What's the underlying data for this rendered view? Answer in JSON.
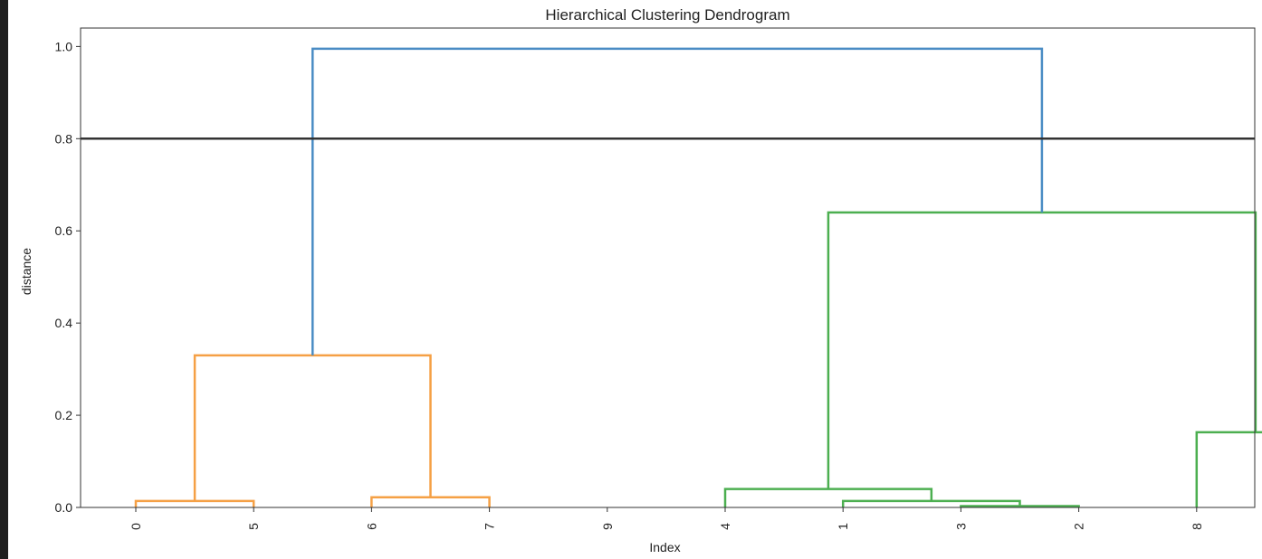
{
  "chart_data": {
    "type": "dendrogram",
    "title": "Hierarchical Clustering Dendrogram",
    "xlabel": "Index",
    "ylabel": "distance",
    "ylim": [
      0,
      1.04
    ],
    "yticks": [
      0.0,
      0.2,
      0.4,
      0.6,
      0.8,
      1.0
    ],
    "ytick_labels": [
      "0.0",
      "0.2",
      "0.4",
      "0.6",
      "0.8",
      "1.0"
    ],
    "leaf_labels": [
      "0",
      "5",
      "6",
      "7",
      "9",
      "4",
      "1",
      "3",
      "2",
      "8"
    ],
    "threshold": 0.8,
    "threshold_color": "#333333",
    "colors": {
      "C0": "#4a8cc4",
      "C1": "#f5a045",
      "C2": "#4caf50"
    },
    "merges": [
      {
        "left": 0,
        "right": 1,
        "left_height": 0.0,
        "right_height": 0.0,
        "height": 0.014,
        "color": "C1"
      },
      {
        "left": 2,
        "right": 3,
        "left_height": 0.0,
        "right_height": 0.0,
        "height": 0.022,
        "color": "C1"
      },
      {
        "left": 0.5,
        "right": 2.5,
        "left_height": 0.014,
        "right_height": 0.022,
        "height": 0.33,
        "color": "C1"
      },
      {
        "left": 7,
        "right": 8,
        "left_height": 0.0,
        "right_height": 0.0,
        "height": 0.003,
        "color": "C2"
      },
      {
        "left": 6,
        "right": 7.5,
        "left_height": 0.0,
        "right_height": 0.003,
        "height": 0.014,
        "color": "C2"
      },
      {
        "left": 5,
        "right": 6.75,
        "left_height": 0.0,
        "right_height": 0.014,
        "height": 0.04,
        "color": "C2"
      },
      {
        "left": 9,
        "right": 10,
        "left_height": 0.0,
        "right_height": 0.0,
        "height": 0.163,
        "color": "C2"
      },
      {
        "left": 5.875,
        "right": 9.5,
        "left_height": 0.04,
        "right_height": 0.163,
        "height": 0.64,
        "color": "C2"
      },
      {
        "left": 1.5,
        "right": 7.6875,
        "left_height": 0.33,
        "right_height": 0.64,
        "height": 0.995,
        "color": "C0"
      }
    ]
  }
}
